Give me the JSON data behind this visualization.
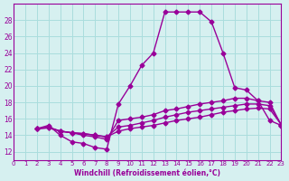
{
  "xlabel": "Windchill (Refroidissement éolien,°C)",
  "background_color": "#d6f0f0",
  "grid_color": "#aadddd",
  "line_color": "#990099",
  "x_ticks": [
    0,
    1,
    2,
    3,
    4,
    5,
    6,
    7,
    8,
    9,
    10,
    11,
    12,
    13,
    14,
    15,
    16,
    17,
    18,
    19,
    20,
    21,
    22,
    23
  ],
  "ylim": [
    11,
    30
  ],
  "xlim": [
    0,
    23
  ],
  "yticks": [
    12,
    14,
    16,
    18,
    20,
    22,
    24,
    26,
    28
  ],
  "series": [
    [
      14.8,
      15.2,
      14.0,
      13.2,
      13.0,
      12.5,
      12.3,
      17.8,
      20.0,
      22.5,
      24.0,
      29.0,
      29.0,
      29.0,
      29.0,
      27.8,
      24.0,
      19.8,
      19.5,
      18.2,
      15.8,
      15.2
    ],
    [
      14.8,
      15.0,
      14.5,
      14.3,
      14.0,
      13.8,
      13.5,
      15.8,
      16.0,
      16.2,
      16.5,
      17.0,
      17.2,
      17.5,
      17.8,
      18.0,
      18.2,
      18.5,
      18.5,
      18.2,
      18.0,
      15.2
    ],
    [
      14.8,
      14.9,
      14.5,
      14.3,
      14.2,
      14.0,
      13.8,
      15.0,
      15.2,
      15.5,
      15.8,
      16.2,
      16.5,
      16.8,
      17.0,
      17.2,
      17.4,
      17.6,
      17.8,
      17.8,
      17.6,
      15.3
    ],
    [
      14.8,
      14.9,
      14.5,
      14.3,
      14.2,
      14.0,
      13.8,
      14.5,
      14.8,
      15.0,
      15.2,
      15.5,
      15.8,
      16.0,
      16.2,
      16.5,
      16.8,
      17.0,
      17.2,
      17.3,
      17.2,
      15.3
    ]
  ],
  "x_start": 2
}
